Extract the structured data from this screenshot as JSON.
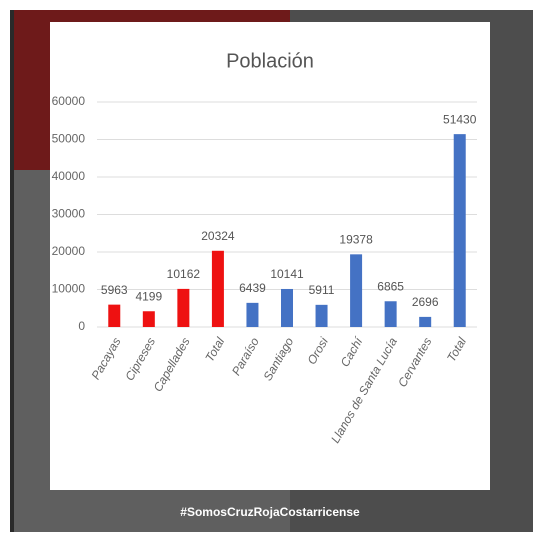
{
  "chart_data": {
    "type": "bar",
    "title": "Población",
    "categories": [
      "Pacayas",
      "Cipreses",
      "Capellades",
      "Total",
      "Paraíso",
      "Santiago",
      "Orosi",
      "Cachí",
      "Llanos de Santa Lucía",
      "Cervantes",
      "Total"
    ],
    "values": [
      5963,
      4199,
      10162,
      20324,
      6439,
      10141,
      5911,
      19378,
      6865,
      2696,
      51430
    ],
    "colors": [
      "#ee1111",
      "#ee1111",
      "#ee1111",
      "#ee1111",
      "#4472c4",
      "#4472c4",
      "#4472c4",
      "#4472c4",
      "#4472c4",
      "#4472c4",
      "#4472c4"
    ],
    "ylim": [
      0,
      60000
    ],
    "yticks": [
      0,
      10000,
      20000,
      30000,
      40000,
      50000,
      60000
    ],
    "grid": true,
    "caption": "#SomosCruzRojaCostarricense"
  }
}
